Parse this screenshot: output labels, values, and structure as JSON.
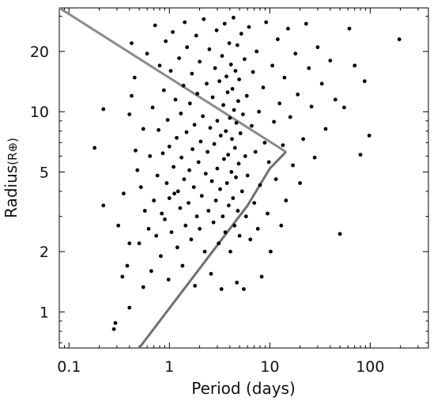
{
  "chart_data": {
    "type": "scatter",
    "title": "",
    "xlabel": "Period (days)",
    "ylabel_main": "Radius",
    "ylabel_unit": "(R⊕)",
    "x_scale": "log",
    "y_scale": "log",
    "xlim": [
      0.08,
      380
    ],
    "ylim": [
      0.66,
      33
    ],
    "x_ticks": [
      {
        "value": 0.1,
        "label": "0.1"
      },
      {
        "value": 1,
        "label": "1"
      },
      {
        "value": 10,
        "label": "10"
      },
      {
        "value": 100,
        "label": "100"
      }
    ],
    "y_ticks": [
      {
        "value": 1,
        "label": "1"
      },
      {
        "value": 2,
        "label": "2"
      },
      {
        "value": 5,
        "label": "5"
      },
      {
        "value": 10,
        "label": "10"
      },
      {
        "value": 20,
        "label": "20"
      }
    ],
    "grid": false,
    "legend": "none",
    "boundary_lines": [
      {
        "color": "#8a8a8a",
        "points": [
          [
            0.08,
            33
          ],
          [
            14.5,
            6.3
          ]
        ]
      },
      {
        "color": "#6f6f6f",
        "points": [
          [
            0.5,
            0.66
          ],
          [
            6,
            3.4
          ],
          [
            10,
            5.2
          ],
          [
            14.5,
            6.3
          ]
        ]
      }
    ],
    "point_color": "#000000",
    "points": [
      [
        0.18,
        6.6
      ],
      [
        0.22,
        10.3
      ],
      [
        0.22,
        3.4
      ],
      [
        0.28,
        0.82
      ],
      [
        0.29,
        0.88
      ],
      [
        0.31,
        2.7
      ],
      [
        0.34,
        1.5
      ],
      [
        0.35,
        3.9
      ],
      [
        0.38,
        1.7
      ],
      [
        0.4,
        1.05
      ],
      [
        0.4,
        9.7
      ],
      [
        0.4,
        2.2
      ],
      [
        0.42,
        12.0
      ],
      [
        0.42,
        22.0
      ],
      [
        0.45,
        14.8
      ],
      [
        0.46,
        6.4
      ],
      [
        0.48,
        5.1
      ],
      [
        0.5,
        2.2
      ],
      [
        0.52,
        4.2
      ],
      [
        0.55,
        1.33
      ],
      [
        0.55,
        8.2
      ],
      [
        0.57,
        3.2
      ],
      [
        0.6,
        19.5
      ],
      [
        0.62,
        2.6
      ],
      [
        0.64,
        6.0
      ],
      [
        0.66,
        1.6
      ],
      [
        0.68,
        10.5
      ],
      [
        0.7,
        3.6
      ],
      [
        0.72,
        27.0
      ],
      [
        0.74,
        2.4
      ],
      [
        0.76,
        4.8
      ],
      [
        0.78,
        8.1
      ],
      [
        0.8,
        17.0
      ],
      [
        0.82,
        1.9
      ],
      [
        0.84,
        3.1
      ],
      [
        0.86,
        6.2
      ],
      [
        0.88,
        12.8
      ],
      [
        0.9,
        2.9
      ],
      [
        0.92,
        22.5
      ],
      [
        0.94,
        4.4
      ],
      [
        0.96,
        9.1
      ],
      [
        0.98,
        1.45
      ],
      [
        1.0,
        3.7
      ],
      [
        1.0,
        6.7
      ],
      [
        1.03,
        16.0
      ],
      [
        1.05,
        2.5
      ],
      [
        1.08,
        25.0
      ],
      [
        1.1,
        5.3
      ],
      [
        1.12,
        3.9
      ],
      [
        1.15,
        11.5
      ],
      [
        1.18,
        7.4
      ],
      [
        1.2,
        2.1
      ],
      [
        1.22,
        4.0
      ],
      [
        1.25,
        18.5
      ],
      [
        1.28,
        3.3
      ],
      [
        1.3,
        9.8
      ],
      [
        1.32,
        5.9
      ],
      [
        1.35,
        1.7
      ],
      [
        1.38,
        13.5
      ],
      [
        1.4,
        4.6
      ],
      [
        1.42,
        28.0
      ],
      [
        1.45,
        2.7
      ],
      [
        1.48,
        7.9
      ],
      [
        1.5,
        21.0
      ],
      [
        1.55,
        3.5
      ],
      [
        1.58,
        5.1
      ],
      [
        1.6,
        11.0
      ],
      [
        1.65,
        2.3
      ],
      [
        1.68,
        15.5
      ],
      [
        1.7,
        6.5
      ],
      [
        1.75,
        4.2
      ],
      [
        1.78,
        8.6
      ],
      [
        1.8,
        1.35
      ],
      [
        1.85,
        24.0
      ],
      [
        1.88,
        3.0
      ],
      [
        1.9,
        12.3
      ],
      [
        1.95,
        5.6
      ],
      [
        2.0,
        2.6
      ],
      [
        2.0,
        17.8
      ],
      [
        2.05,
        7.1
      ],
      [
        2.1,
        3.8
      ],
      [
        2.15,
        9.5
      ],
      [
        2.2,
        29.0
      ],
      [
        2.25,
        2.0
      ],
      [
        2.3,
        4.9
      ],
      [
        2.35,
        13.8
      ],
      [
        2.4,
        6.3
      ],
      [
        2.45,
        3.2
      ],
      [
        2.5,
        20.5
      ],
      [
        2.55,
        8.3
      ],
      [
        2.6,
        1.55
      ],
      [
        2.65,
        4.5
      ],
      [
        2.7,
        11.8
      ],
      [
        2.75,
        2.8
      ],
      [
        2.8,
        6.9
      ],
      [
        2.85,
        16.5
      ],
      [
        2.9,
        3.6
      ],
      [
        2.95,
        25.5
      ],
      [
        3.0,
        5.2
      ],
      [
        3.0,
        9.0
      ],
      [
        3.1,
        2.2
      ],
      [
        3.15,
        14.2
      ],
      [
        3.2,
        4.1
      ],
      [
        3.25,
        7.6
      ],
      [
        3.3,
        1.3
      ],
      [
        3.35,
        19.0
      ],
      [
        3.4,
        3.0
      ],
      [
        3.45,
        10.8
      ],
      [
        3.5,
        5.8
      ],
      [
        3.55,
        27.5
      ],
      [
        3.6,
        2.5
      ],
      [
        3.65,
        8.0
      ],
      [
        3.7,
        15.0
      ],
      [
        3.75,
        4.4
      ],
      [
        3.8,
        12.5
      ],
      [
        3.85,
        6.1
      ],
      [
        3.9,
        3.4
      ],
      [
        3.95,
        22.0
      ],
      [
        4.0,
        9.3
      ],
      [
        4.05,
        2.0
      ],
      [
        4.1,
        17.2
      ],
      [
        4.15,
        5.0
      ],
      [
        4.2,
        7.3
      ],
      [
        4.25,
        13.0
      ],
      [
        4.3,
        3.7
      ],
      [
        4.35,
        29.5
      ],
      [
        4.4,
        10.2
      ],
      [
        4.45,
        2.7
      ],
      [
        4.5,
        6.6
      ],
      [
        4.55,
        16.0
      ],
      [
        4.6,
        4.7
      ],
      [
        4.65,
        8.8
      ],
      [
        4.7,
        1.4
      ],
      [
        4.75,
        21.5
      ],
      [
        4.8,
        3.2
      ],
      [
        4.85,
        11.3
      ],
      [
        4.9,
        5.5
      ],
      [
        4.95,
        14.5
      ],
      [
        5.0,
        2.4
      ],
      [
        5.1,
        7.8
      ],
      [
        5.2,
        24.5
      ],
      [
        5.3,
        4.0
      ],
      [
        5.4,
        9.7
      ],
      [
        5.5,
        1.3
      ],
      [
        5.6,
        18.3
      ],
      [
        5.7,
        6.0
      ],
      [
        5.8,
        3.0
      ],
      [
        5.9,
        12.0
      ],
      [
        6.0,
        4.8
      ],
      [
        6.2,
        26.5
      ],
      [
        6.4,
        2.3
      ],
      [
        6.6,
        8.5
      ],
      [
        6.8,
        15.8
      ],
      [
        7.0,
        3.5
      ],
      [
        7.2,
        6.3
      ],
      [
        7.4,
        20.0
      ],
      [
        7.6,
        2.6
      ],
      [
        7.8,
        10.0
      ],
      [
        8.0,
        4.3
      ],
      [
        8.3,
        1.5
      ],
      [
        8.6,
        13.2
      ],
      [
        8.9,
        7.0
      ],
      [
        9.2,
        28.0
      ],
      [
        9.5,
        3.1
      ],
      [
        9.8,
        5.6
      ],
      [
        10.2,
        2.0
      ],
      [
        10.6,
        17.0
      ],
      [
        11.0,
        8.9
      ],
      [
        11.5,
        4.6
      ],
      [
        12.0,
        23.0
      ],
      [
        12.5,
        11.0
      ],
      [
        13.0,
        2.7
      ],
      [
        13.5,
        6.8
      ],
      [
        14.0,
        14.8
      ],
      [
        14.5,
        3.6
      ],
      [
        15.2,
        26.0
      ],
      [
        16.0,
        9.4
      ],
      [
        17.0,
        5.4
      ],
      [
        18.0,
        19.5
      ],
      [
        19.0,
        12.2
      ],
      [
        20.0,
        4.4
      ],
      [
        21.5,
        7.3
      ],
      [
        23.0,
        27.5
      ],
      [
        24.5,
        16.5
      ],
      [
        26.0,
        10.6
      ],
      [
        28.0,
        5.9
      ],
      [
        30.0,
        21.0
      ],
      [
        33.0,
        13.8
      ],
      [
        36.0,
        8.2
      ],
      [
        40.0,
        18.0
      ],
      [
        45.0,
        11.5
      ],
      [
        50.0,
        2.45
      ],
      [
        55.0,
        10.5
      ],
      [
        62.0,
        26.0
      ],
      [
        70.0,
        17.0
      ],
      [
        80.0,
        6.1
      ],
      [
        88.0,
        14.2
      ],
      [
        98.0,
        7.6
      ],
      [
        195.0,
        23.0
      ]
    ]
  }
}
